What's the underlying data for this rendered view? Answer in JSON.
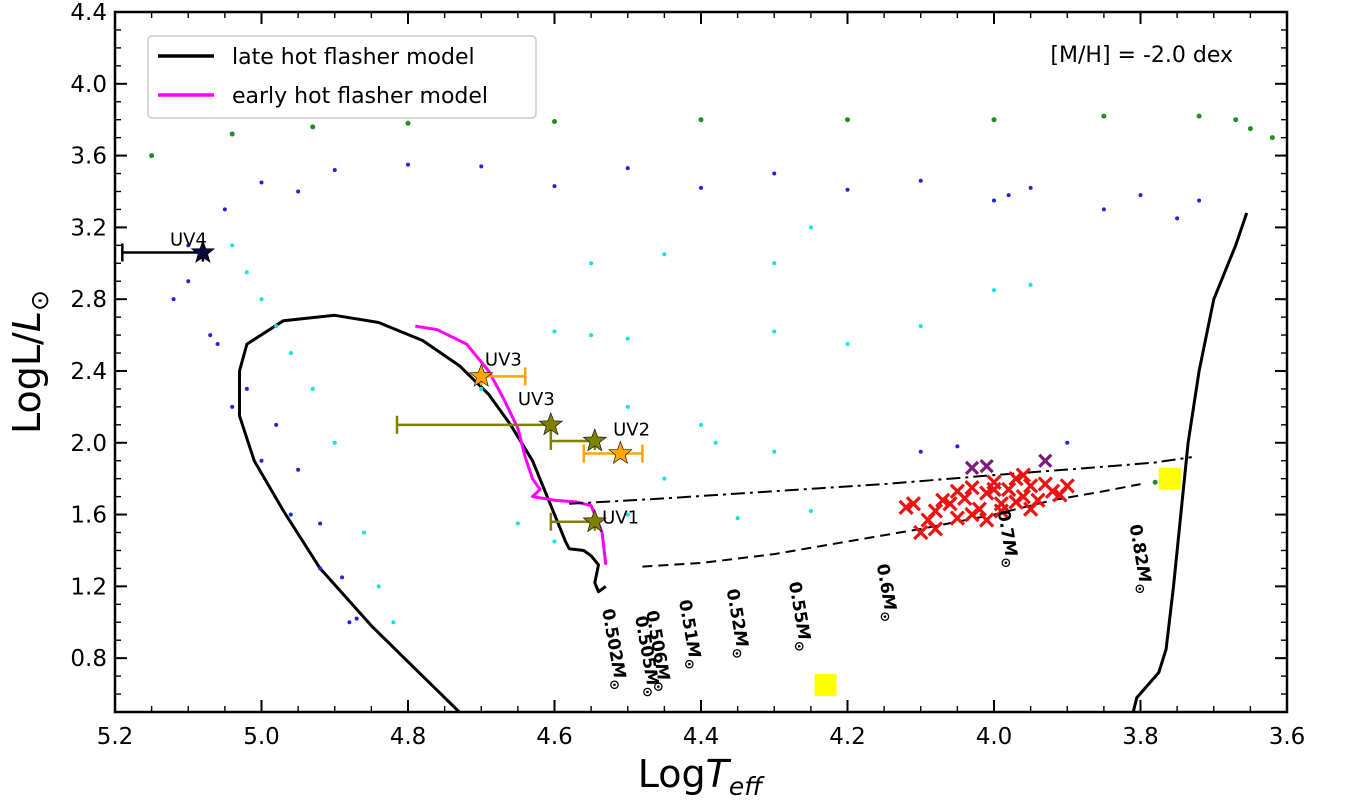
{
  "chart_data": {
    "type": "scatter",
    "xlabel": "LogT_eff",
    "ylabel": "LogL/L_sun",
    "xlabel_parts": {
      "main": "Log",
      "T": "T",
      "sub": "eff"
    },
    "ylabel_parts": {
      "main": "LogL/",
      "L": "L",
      "sub": "⊙"
    },
    "xlim": [
      5.2,
      3.6
    ],
    "ylim": [
      0.5,
      4.4
    ],
    "xticks": [
      "5.2",
      "5.0",
      "4.8",
      "4.6",
      "4.4",
      "4.2",
      "4.0",
      "3.8",
      "3.6"
    ],
    "xtick_values": [
      5.2,
      5.0,
      4.8,
      4.6,
      4.4,
      4.2,
      4.0,
      3.8,
      3.6
    ],
    "yticks": [
      "0.8",
      "1.2",
      "1.6",
      "2.0",
      "2.4",
      "2.8",
      "3.2",
      "3.6",
      "4.0",
      "4.4"
    ],
    "ytick_values": [
      0.8,
      1.2,
      1.6,
      2.0,
      2.4,
      2.8,
      3.2,
      3.6,
      4.0,
      4.4
    ],
    "annotation": "[M/H] = -2.0 dex",
    "legend": {
      "placement": "top-left",
      "entries": [
        {
          "label": "late hot flasher model",
          "color": "#000000"
        },
        {
          "label": "early hot flasher model",
          "color": "#ff00ff"
        }
      ]
    },
    "series": [
      {
        "kind": "line",
        "color": "#000000",
        "width": 3,
        "points": [
          [
            4.73,
            0.5
          ],
          [
            4.78,
            0.7
          ],
          [
            4.85,
            0.98
          ],
          [
            4.92,
            1.3
          ],
          [
            4.97,
            1.62
          ],
          [
            5.01,
            1.9
          ],
          [
            5.03,
            2.15
          ],
          [
            5.03,
            2.4
          ],
          [
            5.02,
            2.55
          ],
          [
            4.97,
            2.68
          ],
          [
            4.9,
            2.71
          ],
          [
            4.84,
            2.67
          ],
          [
            4.78,
            2.57
          ],
          [
            4.73,
            2.43
          ],
          [
            4.69,
            2.27
          ],
          [
            4.66,
            2.1
          ],
          [
            4.63,
            1.9
          ],
          [
            4.61,
            1.7
          ],
          [
            4.595,
            1.55
          ],
          [
            4.585,
            1.45
          ],
          [
            4.58,
            1.41
          ],
          [
            4.56,
            1.4
          ],
          [
            4.55,
            1.37
          ],
          [
            4.54,
            1.32
          ],
          [
            4.545,
            1.22
          ],
          [
            4.54,
            1.17
          ],
          [
            4.53,
            1.2
          ]
        ]
      },
      {
        "kind": "line",
        "color": "#ff00ff",
        "width": 3,
        "points": [
          [
            4.79,
            2.65
          ],
          [
            4.76,
            2.63
          ],
          [
            4.72,
            2.55
          ],
          [
            4.69,
            2.4
          ],
          [
            4.67,
            2.25
          ],
          [
            4.65,
            2.08
          ],
          [
            4.64,
            1.92
          ],
          [
            4.63,
            1.8
          ],
          [
            4.62,
            1.74
          ],
          [
            4.63,
            1.7
          ],
          [
            4.6,
            1.68
          ],
          [
            4.57,
            1.67
          ],
          [
            4.55,
            1.65
          ],
          [
            4.535,
            1.5
          ],
          [
            4.53,
            1.32
          ]
        ]
      },
      {
        "kind": "line",
        "color": "#000000",
        "width": 3,
        "points": [
          [
            3.81,
            0.5
          ],
          [
            3.805,
            0.58
          ],
          [
            3.79,
            0.65
          ],
          [
            3.775,
            0.72
          ],
          [
            3.765,
            0.85
          ],
          [
            3.755,
            1.2
          ],
          [
            3.745,
            1.6
          ],
          [
            3.735,
            2.0
          ],
          [
            3.72,
            2.4
          ],
          [
            3.7,
            2.8
          ],
          [
            3.67,
            3.1
          ],
          [
            3.655,
            3.28
          ]
        ]
      },
      {
        "kind": "line",
        "color": "#000000",
        "width": 2,
        "dash": "10,6",
        "points": [
          [
            4.48,
            1.31
          ],
          [
            4.4,
            1.33
          ],
          [
            4.3,
            1.38
          ],
          [
            4.2,
            1.45
          ],
          [
            4.1,
            1.52
          ],
          [
            4.0,
            1.6
          ],
          [
            3.92,
            1.68
          ],
          [
            3.85,
            1.73
          ],
          [
            3.8,
            1.77
          ]
        ]
      },
      {
        "kind": "line",
        "color": "#000000",
        "width": 2,
        "dash": "14,5,3,5",
        "points": [
          [
            4.58,
            1.66
          ],
          [
            4.45,
            1.69
          ],
          [
            4.3,
            1.73
          ],
          [
            4.15,
            1.77
          ],
          [
            4.0,
            1.82
          ],
          [
            3.87,
            1.86
          ],
          [
            3.78,
            1.89
          ],
          [
            3.73,
            1.92
          ]
        ]
      },
      {
        "kind": "dots",
        "color": "#2222dd",
        "size": 2,
        "points": [
          [
            5.1,
            2.9
          ],
          [
            5.07,
            2.6
          ],
          [
            5.04,
            2.2
          ],
          [
            5.0,
            1.9
          ],
          [
            4.96,
            1.6
          ],
          [
            4.92,
            1.3
          ],
          [
            4.88,
            1.0
          ],
          [
            5.05,
            3.3
          ],
          [
            5.1,
            3.1
          ],
          [
            5.0,
            3.45
          ],
          [
            4.9,
            3.52
          ],
          [
            4.8,
            3.55
          ],
          [
            4.7,
            3.54
          ],
          [
            4.5,
            3.53
          ],
          [
            4.3,
            3.5
          ],
          [
            4.1,
            3.46
          ],
          [
            3.95,
            3.42
          ],
          [
            3.8,
            3.38
          ],
          [
            3.72,
            3.35
          ],
          [
            5.12,
            2.8
          ],
          [
            5.06,
            2.55
          ],
          [
            5.02,
            2.3
          ],
          [
            4.98,
            2.1
          ],
          [
            4.95,
            1.85
          ],
          [
            4.92,
            1.55
          ],
          [
            4.89,
            1.25
          ],
          [
            4.87,
            1.02
          ],
          [
            4.2,
            3.41
          ],
          [
            4.0,
            3.35
          ],
          [
            3.85,
            3.3
          ],
          [
            3.75,
            3.25
          ],
          [
            4.95,
            3.4
          ],
          [
            4.6,
            3.43
          ],
          [
            4.4,
            3.42
          ],
          [
            3.98,
            3.38
          ],
          [
            4.1,
            1.95
          ],
          [
            4.05,
            1.98
          ],
          [
            3.9,
            2.0
          ]
        ]
      },
      {
        "kind": "dots",
        "color": "#00e5e5",
        "size": 2,
        "points": [
          [
            5.04,
            3.1
          ],
          [
            5.02,
            2.95
          ],
          [
            5.0,
            2.8
          ],
          [
            4.98,
            2.65
          ],
          [
            4.96,
            2.5
          ],
          [
            4.93,
            2.3
          ],
          [
            4.9,
            2.0
          ],
          [
            4.86,
            1.5
          ],
          [
            4.84,
            1.2
          ],
          [
            4.82,
            1.0
          ],
          [
            4.6,
            2.62
          ],
          [
            4.55,
            2.6
          ],
          [
            4.5,
            2.58
          ],
          [
            4.4,
            2.1
          ],
          [
            4.3,
            1.95
          ],
          [
            4.25,
            3.2
          ],
          [
            4.0,
            2.85
          ],
          [
            3.95,
            2.88
          ],
          [
            4.1,
            2.65
          ],
          [
            4.3,
            3.0
          ],
          [
            4.2,
            2.55
          ],
          [
            4.45,
            3.05
          ],
          [
            4.55,
            3.0
          ],
          [
            4.5,
            2.2
          ],
          [
            4.7,
            2.3
          ],
          [
            4.65,
            1.55
          ],
          [
            4.6,
            1.45
          ],
          [
            4.3,
            2.62
          ],
          [
            4.5,
            1.6
          ],
          [
            4.45,
            1.8
          ],
          [
            4.35,
            1.58
          ],
          [
            4.25,
            1.62
          ],
          [
            4.38,
            2.0
          ]
        ]
      },
      {
        "kind": "dots",
        "color": "#228b22",
        "size": 2.5,
        "points": [
          [
            5.15,
            3.6
          ],
          [
            5.04,
            3.72
          ],
          [
            4.93,
            3.76
          ],
          [
            4.8,
            3.78
          ],
          [
            4.6,
            3.79
          ],
          [
            4.4,
            3.8
          ],
          [
            4.2,
            3.8
          ],
          [
            4.0,
            3.8
          ],
          [
            3.85,
            3.82
          ],
          [
            3.72,
            3.82
          ],
          [
            3.67,
            3.8
          ],
          [
            3.65,
            3.75
          ],
          [
            3.62,
            3.7
          ],
          [
            3.78,
            1.78
          ]
        ]
      },
      {
        "kind": "markers",
        "marker": "x",
        "color": "#ee1111",
        "size": 13,
        "points": [
          [
            4.09,
            1.57
          ],
          [
            4.08,
            1.62
          ],
          [
            4.07,
            1.68
          ],
          [
            4.06,
            1.66
          ],
          [
            4.05,
            1.73
          ],
          [
            4.04,
            1.69
          ],
          [
            4.03,
            1.75
          ],
          [
            4.02,
            1.63
          ],
          [
            4.01,
            1.72
          ],
          [
            4.0,
            1.78
          ],
          [
            3.99,
            1.66
          ],
          [
            3.98,
            1.74
          ],
          [
            3.97,
            1.8
          ],
          [
            3.96,
            1.7
          ],
          [
            3.95,
            1.76
          ],
          [
            3.94,
            1.68
          ],
          [
            3.93,
            1.77
          ],
          [
            3.92,
            1.73
          ],
          [
            3.91,
            1.71
          ],
          [
            3.9,
            1.76
          ],
          [
            4.1,
            1.5
          ],
          [
            4.08,
            1.52
          ],
          [
            4.03,
            1.6
          ],
          [
            3.99,
            1.62
          ],
          [
            4.12,
            1.64
          ],
          [
            4.05,
            1.58
          ],
          [
            3.96,
            1.82
          ],
          [
            4.01,
            1.57
          ],
          [
            3.97,
            1.67
          ],
          [
            4.11,
            1.66
          ],
          [
            4.0,
            1.74
          ],
          [
            3.95,
            1.63
          ]
        ]
      },
      {
        "kind": "markers",
        "marker": "x",
        "color": "#7b1b7b",
        "size": 12,
        "points": [
          [
            4.03,
            1.86
          ],
          [
            4.01,
            1.87
          ],
          [
            3.93,
            1.9
          ]
        ]
      },
      {
        "kind": "markers",
        "marker": "square",
        "color": "#ffff00",
        "size": 22,
        "points": [
          [
            3.76,
            1.8
          ],
          [
            4.23,
            0.65
          ]
        ]
      }
    ],
    "stars": [
      {
        "label": "UV4",
        "x": 5.08,
        "y": 3.06,
        "color": "#0a0a3a",
        "xerr": [
          [
            5.19,
            5.08
          ]
        ],
        "ebcolor": "#000000",
        "lx": 5.125,
        "ly": 3.1
      },
      {
        "label": "UV3",
        "x": 4.7,
        "y": 2.37,
        "color": "#ffa500",
        "xerr": [
          [
            4.7,
            4.64
          ]
        ],
        "ebcolor": "#ffa500",
        "lx": 4.695,
        "ly": 2.43
      },
      {
        "label": "UV3",
        "x": 4.605,
        "y": 2.1,
        "color": "#808000",
        "xerr": [
          [
            4.815,
            4.605
          ]
        ],
        "ebcolor": "#808000",
        "lx": 4.65,
        "ly": 2.21
      },
      {
        "label": "UV2",
        "x": 4.51,
        "y": 1.94,
        "color": "#ffa500",
        "xerr": [
          [
            4.56,
            4.48
          ]
        ],
        "ebcolor": "#ffa500",
        "lx": 4.52,
        "ly": 2.04
      },
      {
        "label": "",
        "x": 4.545,
        "y": 2.01,
        "color": "#808000",
        "xerr": [
          [
            4.605,
            4.545
          ]
        ],
        "ebcolor": "#808000"
      },
      {
        "label": "UV1",
        "x": 4.545,
        "y": 1.56,
        "color": "#808000",
        "xerr": [
          [
            4.605,
            4.545
          ]
        ],
        "ebcolor": "#808000",
        "lx": 4.535,
        "ly": 1.55
      }
    ],
    "mass_labels": [
      {
        "text": "0.502",
        "x": 4.535,
        "y": 1.07
      },
      {
        "text": "0.505",
        "x": 4.49,
        "y": 1.03
      },
      {
        "text": "0.506",
        "x": 4.475,
        "y": 1.06
      },
      {
        "text": "0.51",
        "x": 4.43,
        "y": 1.12
      },
      {
        "text": "0.52",
        "x": 4.365,
        "y": 1.18
      },
      {
        "text": "0.55",
        "x": 4.28,
        "y": 1.22
      },
      {
        "text": "0.6",
        "x": 4.16,
        "y": 1.32
      },
      {
        "text": "0.7",
        "x": 3.995,
        "y": 1.62
      },
      {
        "text": "0.82",
        "x": 3.815,
        "y": 1.54
      }
    ],
    "mass_unit": {
      "main": "M",
      "sub": "⊙"
    }
  }
}
